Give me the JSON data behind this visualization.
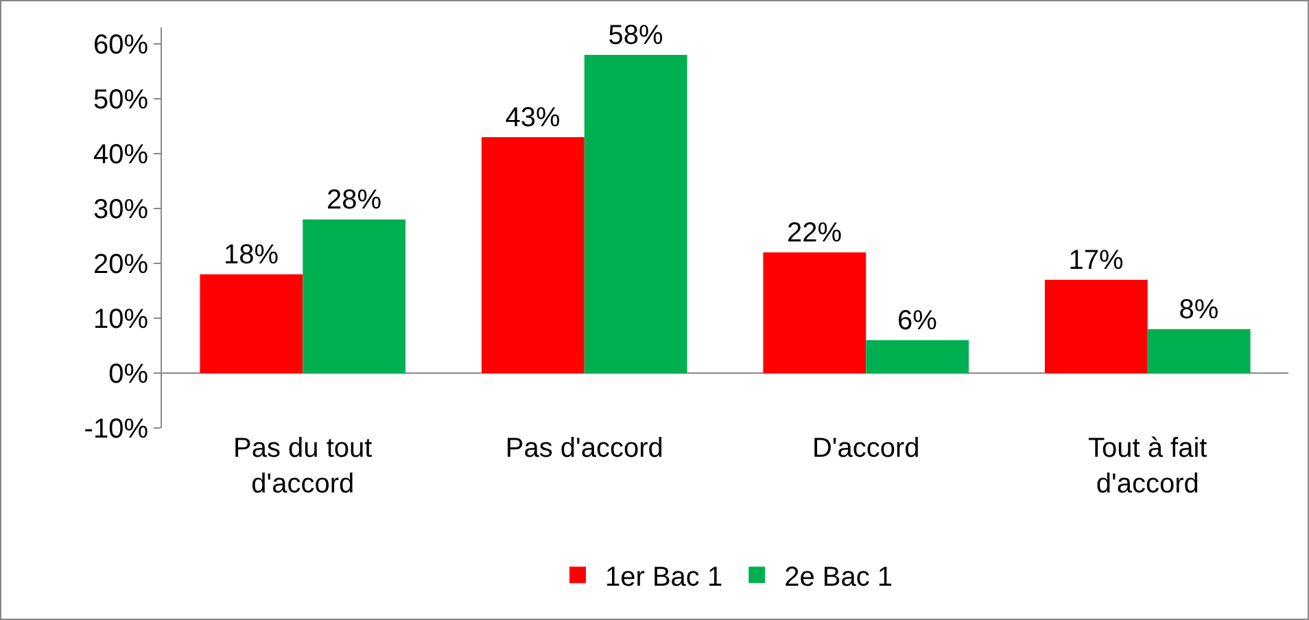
{
  "chart_data": {
    "type": "bar",
    "categories": [
      "Pas du tout d'accord",
      "Pas d'accord",
      "D'accord",
      "Tout à fait d'accord"
    ],
    "series": [
      {
        "name": "1er Bac 1",
        "color": "#ff0000",
        "values": [
          18,
          43,
          22,
          17
        ],
        "value_labels": [
          "18%",
          "43%",
          "22%",
          "17%"
        ]
      },
      {
        "name": "2e Bac 1",
        "color": "#00b050",
        "values": [
          28,
          58,
          6,
          8
        ],
        "value_labels": [
          "28%",
          "58%",
          "6%",
          "8%"
        ]
      }
    ],
    "ylim": [
      -10,
      63
    ],
    "yticks": [
      {
        "value": -10,
        "label": "-10%"
      },
      {
        "value": 0,
        "label": "0%"
      },
      {
        "value": 10,
        "label": "10%"
      },
      {
        "value": 20,
        "label": "20%"
      },
      {
        "value": 30,
        "label": "30%"
      },
      {
        "value": 40,
        "label": "40%"
      },
      {
        "value": 50,
        "label": "50%"
      },
      {
        "value": 60,
        "label": "60%"
      }
    ],
    "grid": false,
    "legend": "bottom"
  }
}
